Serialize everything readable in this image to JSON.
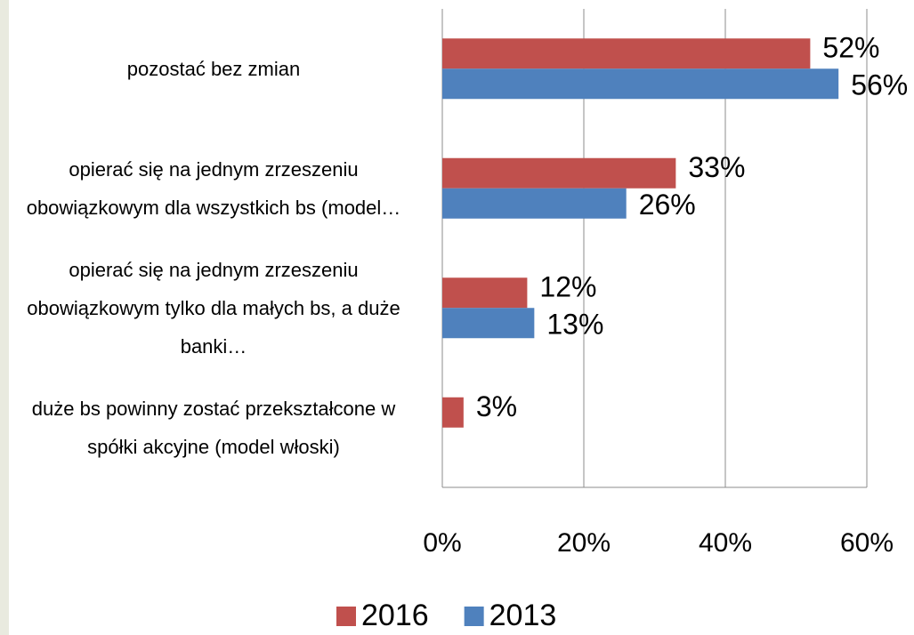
{
  "chart_data": {
    "type": "bar",
    "orientation": "horizontal",
    "categories": [
      "pozostać bez zmian",
      "opierać się na jednym zrzeszeniu obowiązkowym dla wszystkich bs (model…",
      "opierać się na jednym zrzeszeniu obowiązkowym tylko dla małych bs, a duże banki…",
      "duże bs powinny zostać przekształcone w spółki akcyjne (model włoski)"
    ],
    "series": [
      {
        "name": "2016",
        "color": "#c0504d",
        "values": [
          52,
          33,
          12,
          3
        ],
        "value_labels": [
          "52%",
          "33%",
          "12%",
          "3%"
        ]
      },
      {
        "name": "2013",
        "color": "#4f81bd",
        "values": [
          56,
          26,
          13,
          null
        ],
        "value_labels": [
          "56%",
          "26%",
          "13%",
          null
        ]
      }
    ],
    "xlim": [
      0,
      60
    ],
    "xticks": [
      {
        "value": 0,
        "label": "0%"
      },
      {
        "value": 20,
        "label": "20%"
      },
      {
        "value": 40,
        "label": "40%"
      },
      {
        "value": 60,
        "label": "60%"
      }
    ],
    "grid": true,
    "legend": "bottom"
  }
}
